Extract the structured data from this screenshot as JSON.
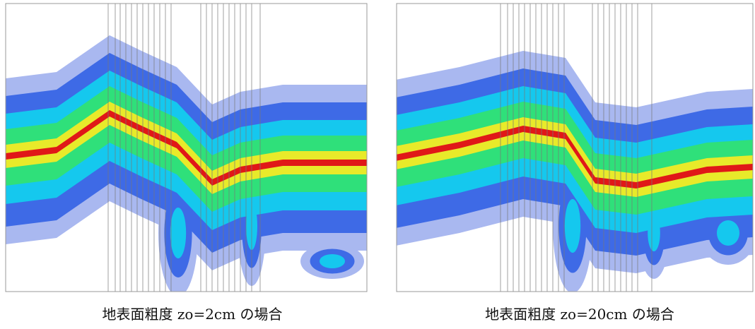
{
  "panels": [
    {
      "caption": "地表面粗度 zo=2cm の場合"
    },
    {
      "caption": "地表面粗度 zo=20cm の場合"
    }
  ]
}
